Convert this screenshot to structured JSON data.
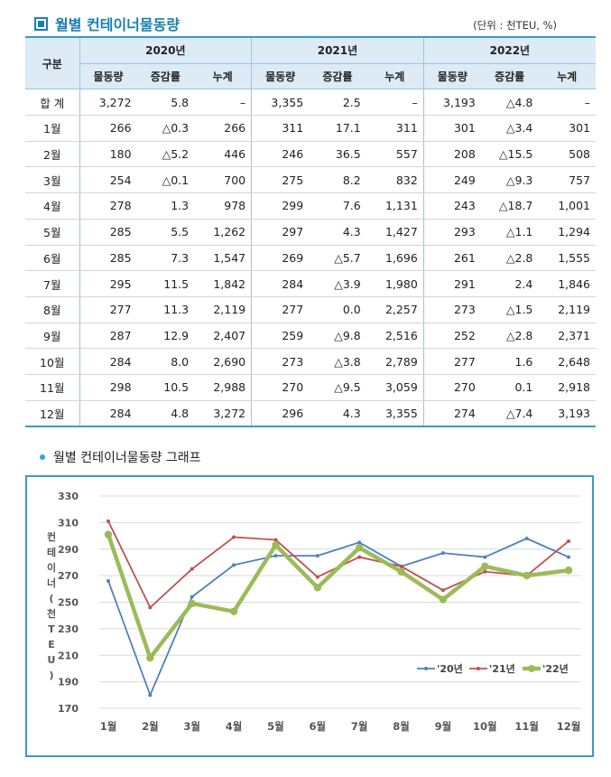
{
  "table_title": "월별 컨테이너물동량",
  "unit": "(단위 : 천TEU, %)",
  "header": {
    "gubun": "구분",
    "years": [
      "2020년",
      "2021년",
      "2022년"
    ],
    "subcols": [
      "물동량",
      "증감률",
      "누계"
    ]
  },
  "rows": [
    {
      "label": "합 계",
      "cells": [
        "3,272",
        "5.8",
        "–",
        "3,355",
        "2.5",
        "–",
        "3,193",
        "△4.8",
        "–"
      ]
    },
    {
      "label": "1월",
      "cells": [
        "266",
        "△0.3",
        "266",
        "311",
        "17.1",
        "311",
        "301",
        "△3.4",
        "301"
      ]
    },
    {
      "label": "2월",
      "cells": [
        "180",
        "△5.2",
        "446",
        "246",
        "36.5",
        "557",
        "208",
        "△15.5",
        "508"
      ]
    },
    {
      "label": "3월",
      "cells": [
        "254",
        "△0.1",
        "700",
        "275",
        "8.2",
        "832",
        "249",
        "△9.3",
        "757"
      ]
    },
    {
      "label": "4월",
      "cells": [
        "278",
        "1.3",
        "978",
        "299",
        "7.6",
        "1,131",
        "243",
        "△18.7",
        "1,001"
      ]
    },
    {
      "label": "5월",
      "cells": [
        "285",
        "5.5",
        "1,262",
        "297",
        "4.3",
        "1,427",
        "293",
        "△1.1",
        "1,294"
      ]
    },
    {
      "label": "6월",
      "cells": [
        "285",
        "7.3",
        "1,547",
        "269",
        "△5.7",
        "1,696",
        "261",
        "△2.8",
        "1,555"
      ]
    },
    {
      "label": "7월",
      "cells": [
        "295",
        "11.5",
        "1,842",
        "284",
        "△3.9",
        "1,980",
        "291",
        "2.4",
        "1,846"
      ]
    },
    {
      "label": "8월",
      "cells": [
        "277",
        "11.3",
        "2,119",
        "277",
        "0.0",
        "2,257",
        "273",
        "△1.5",
        "2,119"
      ]
    },
    {
      "label": "9월",
      "cells": [
        "287",
        "12.9",
        "2,407",
        "259",
        "△9.8",
        "2,516",
        "252",
        "△2.8",
        "2,371"
      ]
    },
    {
      "label": "10월",
      "cells": [
        "284",
        "8.0",
        "2,690",
        "273",
        "△3.8",
        "2,789",
        "277",
        "1.6",
        "2,648"
      ]
    },
    {
      "label": "11월",
      "cells": [
        "298",
        "10.5",
        "2,988",
        "270",
        "△9.5",
        "3,059",
        "270",
        "0.1",
        "2,918"
      ]
    },
    {
      "label": "12월",
      "cells": [
        "284",
        "4.8",
        "3,272",
        "296",
        "4.3",
        "3,355",
        "274",
        "△7.4",
        "3,193"
      ]
    }
  ],
  "graph_title": "월별 컨테이너물동량 그래프",
  "chart_data": {
    "type": "line",
    "title": "월별 컨테이너물동량 그래프",
    "ylabel": "컨테이너(천TEU)",
    "xlabel": "",
    "categories": [
      "1월",
      "2월",
      "3월",
      "4월",
      "5월",
      "6월",
      "7월",
      "8월",
      "9월",
      "10월",
      "11월",
      "12월"
    ],
    "ylim": [
      170,
      330
    ],
    "yticks": [
      170,
      190,
      210,
      230,
      250,
      270,
      290,
      310,
      330
    ],
    "grid": true,
    "legend_position": "bottom-right",
    "series": [
      {
        "name": "'20년",
        "color": "#4f81bd",
        "values": [
          266,
          180,
          254,
          278,
          285,
          285,
          295,
          277,
          287,
          284,
          298,
          284
        ]
      },
      {
        "name": "'21년",
        "color": "#c0504d",
        "values": [
          311,
          246,
          275,
          299,
          297,
          269,
          284,
          277,
          259,
          273,
          270,
          296
        ]
      },
      {
        "name": "'22년",
        "color": "#9bbb59",
        "values": [
          301,
          208,
          249,
          243,
          293,
          261,
          291,
          273,
          252,
          277,
          270,
          274
        ]
      }
    ]
  }
}
